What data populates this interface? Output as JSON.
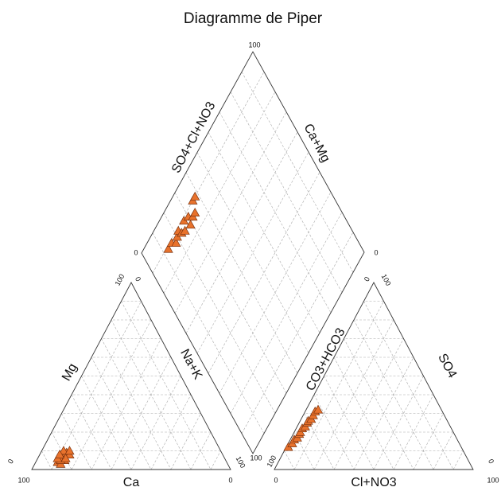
{
  "chart_data": {
    "type": "piper",
    "title": "Diagramme de Piper",
    "cations": [
      {
        "label": "Ca",
        "lim": [
          0,
          100
        ],
        "values": [
          85,
          83,
          84,
          80,
          82,
          78,
          81,
          79,
          77,
          83,
          80,
          76,
          84,
          82
        ]
      },
      {
        "label": "Mg",
        "lim": [
          0,
          100
        ],
        "values": [
          4,
          6,
          3,
          8,
          7,
          9,
          5,
          10,
          8,
          5,
          6,
          10,
          6,
          8
        ]
      },
      {
        "label": "Na+K",
        "lim": [
          0,
          100
        ],
        "values": [
          11,
          11,
          13,
          12,
          11,
          13,
          14,
          11,
          15,
          12,
          14,
          14,
          10,
          10
        ]
      }
    ],
    "anions": [
      {
        "label": "CO3+HCO3",
        "lim": [
          0,
          100
        ],
        "values": [
          87,
          84,
          82,
          80,
          78,
          77,
          75,
          73,
          71,
          70,
          68,
          66,
          64,
          62
        ]
      },
      {
        "label": "SO4",
        "lim": [
          0,
          100
        ],
        "values": [
          12,
          14,
          16,
          17,
          19,
          20,
          22,
          23,
          25,
          26,
          27,
          29,
          31,
          32
        ]
      },
      {
        "label": "Cl+NO3",
        "lim": [
          0,
          100
        ],
        "values": [
          1,
          2,
          2,
          3,
          3,
          3,
          3,
          4,
          4,
          4,
          5,
          5,
          5,
          6
        ]
      }
    ],
    "diamond": [
      {
        "label": "SO4+Cl+NO3",
        "lim": [
          0,
          100
        ]
      },
      {
        "label": "Ca+Mg",
        "lim": [
          0,
          100
        ]
      }
    ],
    "ticks": [
      10,
      20,
      30,
      40,
      50,
      60,
      70,
      80,
      90
    ],
    "color": "#e8722c"
  }
}
